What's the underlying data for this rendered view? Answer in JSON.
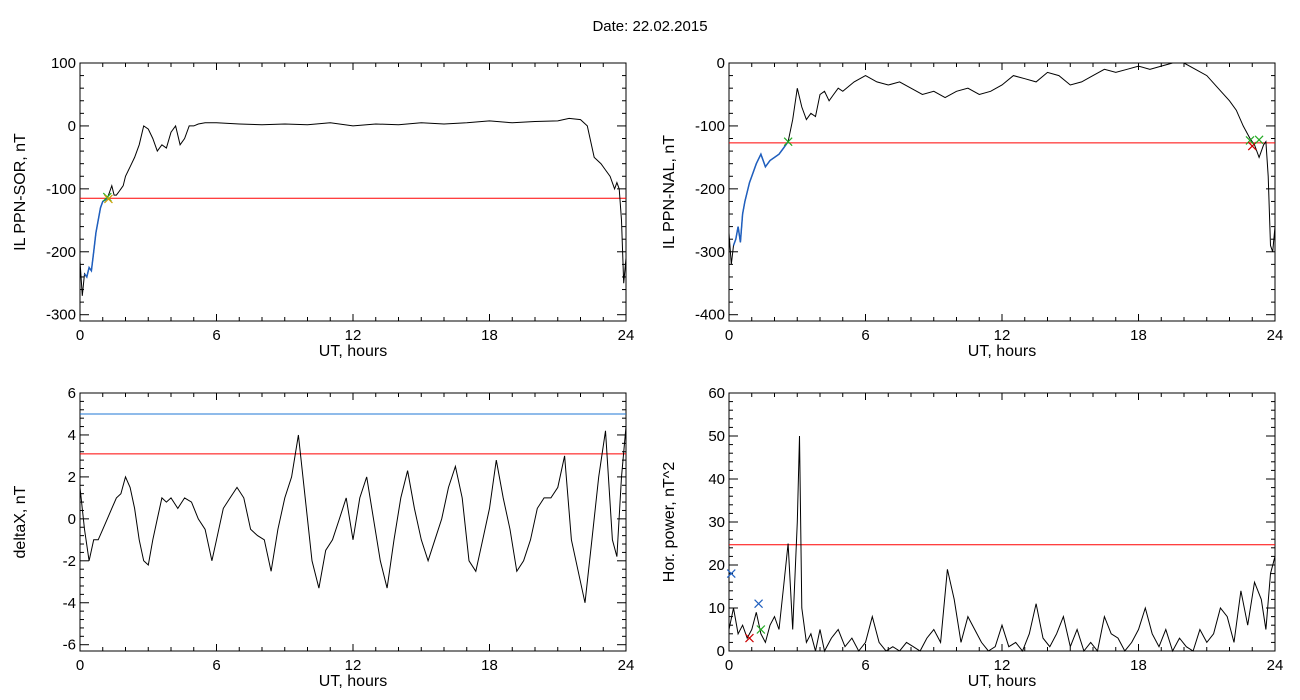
{
  "page": {
    "title": "Date:  22.02.2015"
  },
  "chart_data": [
    {
      "type": "line",
      "id": "il-ppn-sor",
      "xlabel": "UT, hours",
      "ylabel": "IL PPN-SOR, nT",
      "xlim": [
        0,
        24
      ],
      "ylim": [
        -310,
        100
      ],
      "xticks": [
        0,
        6,
        12,
        18,
        24
      ],
      "yticks": [
        -300,
        -200,
        -100,
        0,
        100
      ],
      "grid": false,
      "threshold_lines": [
        {
          "value": -115,
          "color": "#ff0000"
        }
      ],
      "highlight": {
        "x_range": [
          0.15,
          1.2
        ],
        "color": "#1f5fbf"
      },
      "markers": [
        {
          "x": 1.2,
          "y": -113,
          "symbol": "x",
          "color": "#22aa22"
        },
        {
          "x": 1.25,
          "y": -116,
          "symbol": "x",
          "color": "#c8a000"
        }
      ],
      "series": [
        {
          "x": [
            0,
            0.1,
            0.2,
            0.3,
            0.4,
            0.5,
            0.6,
            0.7,
            0.8,
            0.9,
            1.0,
            1.1,
            1.2,
            1.3,
            1.4,
            1.5,
            1.6,
            1.7,
            1.8,
            1.9,
            2.0,
            2.2,
            2.4,
            2.6,
            2.8,
            3.0,
            3.2,
            3.4,
            3.6,
            3.8,
            4.0,
            4.2,
            4.4,
            4.6,
            4.8,
            5.0,
            5.2,
            5.5,
            6,
            7,
            8,
            9,
            10,
            11,
            12,
            13,
            14,
            15,
            16,
            17,
            18,
            19,
            20,
            21,
            21.5,
            22.0,
            22.3,
            22.6,
            22.9,
            23.1,
            23.3,
            23.5,
            23.6,
            23.7,
            23.8,
            23.9,
            24.0
          ],
          "y": [
            -215,
            -270,
            -235,
            -240,
            -225,
            -230,
            -200,
            -170,
            -150,
            -130,
            -120,
            -118,
            -115,
            -105,
            -95,
            -110,
            -110,
            -105,
            -100,
            -95,
            -80,
            -65,
            -50,
            -30,
            0,
            -5,
            -20,
            -40,
            -30,
            -35,
            -10,
            0,
            -30,
            -20,
            0,
            0,
            3,
            5,
            5,
            3,
            2,
            3,
            2,
            5,
            0,
            3,
            2,
            5,
            3,
            5,
            8,
            5,
            7,
            8,
            12,
            10,
            0,
            -50,
            -60,
            -70,
            -80,
            -100,
            -90,
            -100,
            -150,
            -250,
            -210
          ]
        }
      ]
    },
    {
      "type": "line",
      "id": "il-ppn-nal",
      "xlabel": "UT, hours",
      "ylabel": "IL PPN-NAL, nT",
      "xlim": [
        0,
        24
      ],
      "ylim": [
        -410,
        0
      ],
      "xticks": [
        0,
        6,
        12,
        18,
        24
      ],
      "yticks": [
        -400,
        -300,
        -200,
        -100,
        0
      ],
      "grid": false,
      "threshold_lines": [
        {
          "value": -127,
          "color": "#ff0000"
        }
      ],
      "highlight": {
        "x_range": [
          0.15,
          2.6
        ],
        "color": "#1f5fbf"
      },
      "markers": [
        {
          "x": 2.6,
          "y": -125,
          "symbol": "x",
          "color": "#22aa22"
        },
        {
          "x": 22.9,
          "y": -123,
          "symbol": "x",
          "color": "#22aa22"
        },
        {
          "x": 23.0,
          "y": -132,
          "symbol": "x",
          "color": "#cc0000"
        },
        {
          "x": 23.3,
          "y": -122,
          "symbol": "x",
          "color": "#22aa22"
        }
      ],
      "series": [
        {
          "x": [
            0,
            0.1,
            0.2,
            0.3,
            0.4,
            0.5,
            0.6,
            0.7,
            0.8,
            0.9,
            1.0,
            1.2,
            1.4,
            1.6,
            1.8,
            2.0,
            2.2,
            2.4,
            2.6,
            2.8,
            3.0,
            3.2,
            3.4,
            3.6,
            3.8,
            4.0,
            4.2,
            4.4,
            4.6,
            4.8,
            5.0,
            5.5,
            6,
            6.5,
            7,
            7.5,
            8,
            8.5,
            9,
            9.5,
            10,
            10.5,
            11,
            11.5,
            12,
            12.5,
            13,
            13.5,
            14,
            14.5,
            15,
            15.5,
            16,
            16.5,
            17,
            17.5,
            18,
            18.5,
            19,
            19.5,
            20,
            20.5,
            21,
            21.5,
            22,
            22.3,
            22.6,
            22.9,
            23.1,
            23.3,
            23.5,
            23.6,
            23.7,
            23.8,
            23.9,
            24.0
          ],
          "y": [
            -270,
            -320,
            -290,
            -280,
            -260,
            -285,
            -240,
            -220,
            -205,
            -190,
            -180,
            -160,
            -145,
            -165,
            -155,
            -150,
            -145,
            -135,
            -125,
            -90,
            -40,
            -70,
            -90,
            -80,
            -85,
            -50,
            -45,
            -60,
            -50,
            -40,
            -45,
            -30,
            -20,
            -30,
            -35,
            -30,
            -40,
            -50,
            -45,
            -55,
            -45,
            -40,
            -50,
            -45,
            -35,
            -20,
            -25,
            -30,
            -15,
            -20,
            -35,
            -30,
            -20,
            -10,
            -15,
            -10,
            -5,
            -10,
            -5,
            0,
            0,
            -10,
            -20,
            -40,
            -60,
            -75,
            -100,
            -120,
            -130,
            -150,
            -130,
            -125,
            -180,
            -290,
            -300,
            -260
          ]
        }
      ]
    },
    {
      "type": "line",
      "id": "deltax",
      "xlabel": "UT, hours",
      "ylabel": "deltaX, nT",
      "xlim": [
        0,
        24
      ],
      "ylim": [
        -6.3,
        6
      ],
      "xticks": [
        0,
        6,
        12,
        18,
        24
      ],
      "yticks": [
        -6,
        -4,
        -2,
        0,
        2,
        4,
        6
      ],
      "grid": false,
      "threshold_lines": [
        {
          "value": 5.0,
          "color": "#1f77d4"
        },
        {
          "value": 3.1,
          "color": "#ff0000"
        }
      ],
      "series": [
        {
          "x": [
            0,
            0.2,
            0.4,
            0.6,
            0.8,
            1.0,
            1.2,
            1.4,
            1.6,
            1.8,
            2.0,
            2.2,
            2.4,
            2.6,
            2.8,
            3.0,
            3.2,
            3.4,
            3.6,
            3.8,
            4.0,
            4.3,
            4.6,
            4.9,
            5.2,
            5.5,
            5.8,
            6.0,
            6.3,
            6.6,
            6.9,
            7.2,
            7.5,
            7.8,
            8.1,
            8.4,
            8.7,
            9.0,
            9.3,
            9.6,
            9.9,
            10.2,
            10.5,
            10.8,
            11.1,
            11.4,
            11.7,
            12.0,
            12.3,
            12.6,
            12.9,
            13.2,
            13.5,
            13.8,
            14.1,
            14.4,
            14.7,
            15.0,
            15.3,
            15.6,
            15.9,
            16.2,
            16.5,
            16.8,
            17.1,
            17.4,
            17.7,
            18.0,
            18.3,
            18.6,
            18.9,
            19.2,
            19.5,
            19.8,
            20.1,
            20.4,
            20.7,
            21.0,
            21.3,
            21.6,
            21.9,
            22.2,
            22.5,
            22.8,
            23.1,
            23.4,
            23.6,
            23.8,
            24.0
          ],
          "y": [
            1.5,
            -0.5,
            -2,
            -1,
            -1,
            -0.5,
            0,
            0.5,
            1,
            1.2,
            2,
            1.5,
            0.5,
            -1,
            -2,
            -2.2,
            -1,
            0,
            1,
            0.8,
            1,
            0.5,
            1,
            0.8,
            0,
            -0.5,
            -2,
            -1,
            0.5,
            1,
            1.5,
            1,
            -0.5,
            -0.8,
            -1,
            -2.5,
            -0.5,
            1,
            2,
            4,
            1,
            -2,
            -3.3,
            -1.5,
            -1,
            0,
            1,
            -1,
            1,
            2,
            0,
            -2,
            -3.3,
            -1,
            1,
            2.3,
            0.5,
            -1,
            -2,
            -1,
            0,
            1.5,
            2.5,
            1,
            -2,
            -2.5,
            -1,
            0.5,
            2.8,
            1,
            -0.5,
            -2.5,
            -2,
            -1,
            0.5,
            1,
            1,
            1.5,
            3,
            -1,
            -2.5,
            -4,
            -1,
            2,
            4.2,
            -1,
            -1.8,
            2,
            4.4
          ]
        }
      ]
    },
    {
      "type": "line",
      "id": "hor-power",
      "xlabel": "UT, hours",
      "ylabel": "Hor. power, nT^2",
      "xlim": [
        0,
        24
      ],
      "ylim": [
        0,
        60
      ],
      "xticks": [
        0,
        6,
        12,
        18,
        24
      ],
      "yticks": [
        0,
        10,
        20,
        30,
        40,
        50,
        60
      ],
      "grid": false,
      "threshold_lines": [
        {
          "value": 24.7,
          "color": "#ff0000"
        }
      ],
      "markers": [
        {
          "x": 0.1,
          "y": 18,
          "symbol": "x",
          "color": "#1f5fbf"
        },
        {
          "x": 0.9,
          "y": 3,
          "symbol": "x",
          "color": "#cc0000"
        },
        {
          "x": 1.3,
          "y": 11,
          "symbol": "x",
          "color": "#1f5fbf"
        },
        {
          "x": 1.4,
          "y": 5,
          "symbol": "x",
          "color": "#22aa22"
        }
      ],
      "series": [
        {
          "x": [
            0,
            0.2,
            0.4,
            0.6,
            0.8,
            1.0,
            1.2,
            1.4,
            1.6,
            1.8,
            2.0,
            2.2,
            2.4,
            2.6,
            2.8,
            3.0,
            3.1,
            3.2,
            3.4,
            3.6,
            3.8,
            4.0,
            4.2,
            4.5,
            4.8,
            5.1,
            5.4,
            5.7,
            6.0,
            6.3,
            6.6,
            6.9,
            7.2,
            7.5,
            7.8,
            8.1,
            8.4,
            8.7,
            9.0,
            9.3,
            9.6,
            9.9,
            10.2,
            10.5,
            10.8,
            11.1,
            11.4,
            11.7,
            12.0,
            12.3,
            12.6,
            12.9,
            13.2,
            13.5,
            13.8,
            14.1,
            14.4,
            14.7,
            15.0,
            15.3,
            15.6,
            15.9,
            16.2,
            16.5,
            16.8,
            17.1,
            17.4,
            17.7,
            18.0,
            18.3,
            18.6,
            18.9,
            19.2,
            19.5,
            19.8,
            20.1,
            20.4,
            20.7,
            21.0,
            21.3,
            21.6,
            21.9,
            22.2,
            22.5,
            22.8,
            23.1,
            23.4,
            23.6,
            23.8,
            24.0
          ],
          "y": [
            5,
            10,
            4,
            6,
            3,
            5,
            9,
            4,
            2,
            6,
            8,
            5,
            15,
            25,
            5,
            30,
            50,
            10,
            2,
            4,
            0,
            5,
            0,
            3,
            5,
            1,
            3,
            0,
            2,
            8,
            2,
            0,
            1,
            0,
            2,
            1,
            0,
            3,
            5,
            2,
            19,
            12,
            2,
            8,
            5,
            2,
            0,
            1,
            6,
            1,
            2,
            0,
            4,
            11,
            3,
            1,
            4,
            8,
            1,
            5,
            0,
            2,
            0,
            8,
            4,
            3,
            0,
            2,
            5,
            10,
            4,
            1,
            5,
            0,
            3,
            1,
            0,
            5,
            2,
            4,
            10,
            8,
            2,
            14,
            6,
            16,
            12,
            5,
            18,
            22
          ]
        }
      ]
    }
  ]
}
